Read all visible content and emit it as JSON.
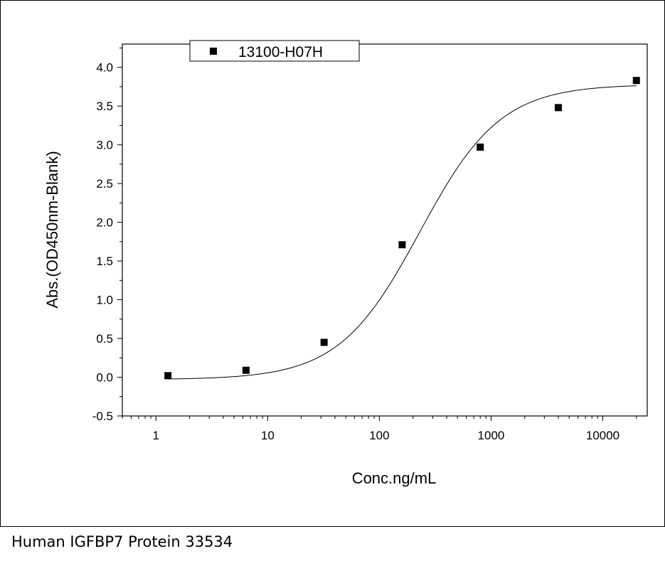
{
  "caption": "Human IGFBP7 Protein 33534",
  "chart_data": {
    "type": "scatter",
    "xlabel": "Conc.ng/mL",
    "ylabel": "Abs.(OD450nm-Blank)",
    "xscale": "log",
    "xlim": [
      0.5,
      25000
    ],
    "ylim": [
      -0.5,
      4.3
    ],
    "xticks": [
      1,
      10,
      100,
      1000,
      10000
    ],
    "xtick_labels": [
      "1",
      "10",
      "100",
      "1000",
      "10000"
    ],
    "yticks": [
      -0.5,
      0.0,
      0.5,
      1.0,
      1.5,
      2.0,
      2.5,
      3.0,
      3.5,
      4.0
    ],
    "ytick_labels": [
      "-0.5",
      "0.0",
      "0.5",
      "1.0",
      "1.5",
      "2.0",
      "2.5",
      "3.0",
      "3.5",
      "4.0"
    ],
    "grid": false,
    "legend_position": "top-left",
    "series": [
      {
        "name": "13100-H07H",
        "marker": "square",
        "color": "#000000",
        "x": [
          1.28,
          6.4,
          32,
          160,
          800,
          4000,
          20000
        ],
        "y": [
          0.02,
          0.09,
          0.45,
          1.71,
          2.97,
          3.48,
          3.83
        ]
      }
    ],
    "fit_curve": {
      "model": "4PL",
      "color": "#000000",
      "bottom": -0.03,
      "top": 3.78,
      "ec50": 230,
      "hill": 1.2
    }
  }
}
